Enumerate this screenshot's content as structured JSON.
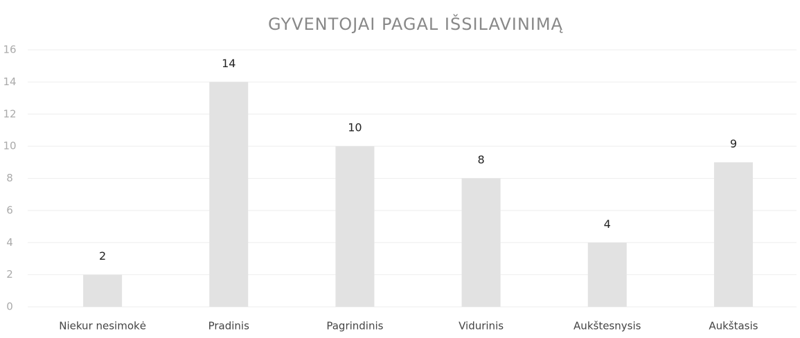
{
  "chart_data": {
    "type": "bar",
    "title": "GYVENTOJAI PAGAL IŠSILAVINIMĄ",
    "categories": [
      "Niekur nesimokė",
      "Pradinis",
      "Pagrindinis",
      "Vidurinis",
      "Aukštesnysis",
      "Aukštasis"
    ],
    "values": [
      2,
      14,
      10,
      8,
      4,
      9
    ],
    "color": "#e2e2e2",
    "ylim": [
      0,
      16
    ],
    "yticks": [
      0,
      2,
      4,
      6,
      8,
      10,
      12,
      14,
      16
    ],
    "grid": true,
    "data_labels": true
  }
}
